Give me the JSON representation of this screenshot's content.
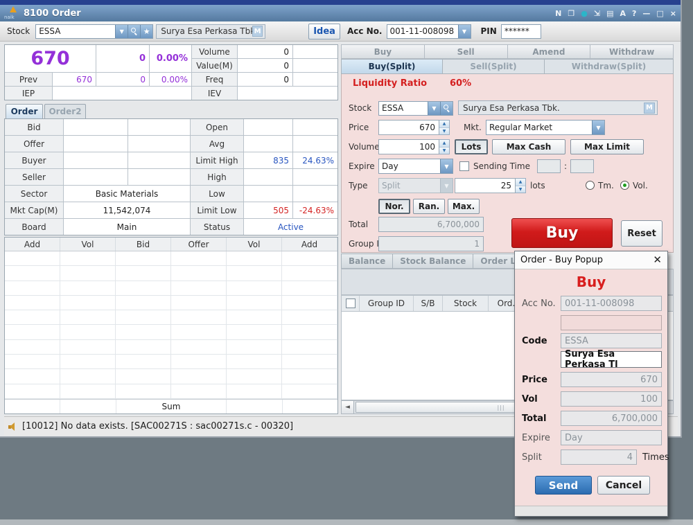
{
  "window": {
    "title": "8100 Order",
    "logo_text": "naik",
    "titlebar_icons": [
      {
        "name": "news-icon",
        "glyph": "N"
      },
      {
        "name": "window-mode-icon",
        "glyph": "❐"
      },
      {
        "name": "pin-icon",
        "glyph": "●",
        "color": "#2bb5c9"
      },
      {
        "name": "expand-icon",
        "glyph": "⇲"
      },
      {
        "name": "print-icon",
        "glyph": "▤"
      },
      {
        "name": "font-icon",
        "glyph": "A"
      },
      {
        "name": "help-icon",
        "glyph": "?"
      },
      {
        "name": "minimize-icon",
        "glyph": "—"
      },
      {
        "name": "maximize-icon",
        "glyph": "□"
      },
      {
        "name": "close-icon",
        "glyph": "×"
      }
    ]
  },
  "toolbar": {
    "stock_label": "Stock",
    "stock_code": "ESSA",
    "stock_name": "Surya Esa Perkasa Tbk.",
    "m_button": "M",
    "idea_button": "Idea",
    "acc_label": "Acc No.",
    "acc_value": "001-11-008098",
    "pin_label": "PIN",
    "pin_value": "******"
  },
  "quote": {
    "last_price": "670",
    "change": "0",
    "change_pct": "0.00%",
    "prev_label": "Prev",
    "prev_value": "670",
    "prev_change": "0",
    "prev_change_pct": "0.00%",
    "iep_label": "IEP",
    "volume_label": "Volume",
    "volume_value": "0",
    "value_label": "Value(M)",
    "value_value": "0",
    "freq_label": "Freq",
    "freq_value": "0",
    "iev_label": "IEV"
  },
  "left_tabs": {
    "order": "Order",
    "order2": "Order2"
  },
  "details": {
    "rows": [
      {
        "l": "Bid",
        "lv": "",
        "r": "Open",
        "rv1": "",
        "rv2": ""
      },
      {
        "l": "Offer",
        "lv": "",
        "r": "Avg",
        "rv1": "",
        "rv2": ""
      },
      {
        "l": "Buyer",
        "lv": "",
        "r": "Limit High",
        "rv1": "835",
        "rv2": "24.63%"
      },
      {
        "l": "Seller",
        "lv": "",
        "r": "High",
        "rv1": "",
        "rv2": ""
      },
      {
        "l": "Sector",
        "lv": "Basic Materials",
        "r": "Low",
        "rv1": "",
        "rv2": ""
      },
      {
        "l": "Mkt Cap(M)",
        "lv": "11,542,074",
        "r": "Limit Low",
        "rv1": "505",
        "rv2": "-24.63%"
      },
      {
        "l": "Board",
        "lv": "Main",
        "r": "Status",
        "rv1": "Active",
        "rv2": ""
      }
    ]
  },
  "orderbook": {
    "headers": [
      "Add",
      "Vol",
      "Bid",
      "Offer",
      "Vol",
      "Add"
    ],
    "empty_rows": 10,
    "sum_label": "Sum"
  },
  "order_panel": {
    "tabs_main": [
      "Buy",
      "Sell",
      "Amend",
      "Withdraw"
    ],
    "tabs_split": [
      "Buy(Split)",
      "Sell(Split)",
      "Withdraw(Split)"
    ],
    "liquidity_label": "Liquidity Ratio",
    "liquidity_value": "60%",
    "stock_label": "Stock",
    "stock_code": "ESSA",
    "stock_name": "Surya Esa Perkasa Tbk.",
    "m_button": "M",
    "price_label": "Price",
    "price_value": "670",
    "mkt_label": "Mkt.",
    "mkt_value": "Regular Market",
    "volume_label": "Volume",
    "volume_value": "100",
    "lots_button": "Lots",
    "max_cash_button": "Max Cash",
    "max_limit_button": "Max Limit",
    "expire_label": "Expire",
    "expire_value": "Day",
    "sending_time_label": "Sending Time",
    "time_separator": ":",
    "type_label": "Type",
    "type_value": "Split",
    "split_lots_value": "25",
    "lots_suffix": "lots",
    "radio_tm_label": "Tm.",
    "radio_vol_label": "Vol.",
    "nor_button": "Nor.",
    "ran_button": "Ran.",
    "max_button": "Max.",
    "total_label": "Total",
    "total_value": "6,700,000",
    "group_label": "Group ID",
    "group_value": "1",
    "buy_button": "Buy",
    "reset_button": "Reset"
  },
  "balance_section": {
    "tabs": [
      "Balance",
      "Stock Balance",
      "Order Li"
    ],
    "columns": [
      "Group ID",
      "S/B",
      "Stock",
      "Ord. Pri"
    ]
  },
  "status_bar": {
    "message": "[10012] No data exists. [SAC00271S : sac00271s.c - 00320]"
  },
  "popup": {
    "title": "Order - Buy Popup",
    "close_glyph": "✕",
    "heading": "Buy",
    "acc_label": "Acc No.",
    "acc_value": "001-11-008098",
    "code_label": "Code",
    "code_value": "ESSA",
    "name_value": "Surya Esa Perkasa Tl",
    "price_label": "Price",
    "price_value": "670",
    "vol_label": "Vol",
    "vol_value": "100",
    "total_label": "Total",
    "total_value": "6,700,000",
    "expire_label": "Expire",
    "expire_value": "Day",
    "split_label": "Split",
    "split_value": "4",
    "times_label": "Times",
    "send_button": "Send",
    "cancel_button": "Cancel"
  },
  "colors": {
    "price_purple": "#9430d8",
    "value_blue": "#2956c0",
    "value_red": "#d42525",
    "buy_red": "#d11b1b",
    "send_blue": "#2b6cb0",
    "panel_pink": "#f4dedd",
    "titlebar_blue": "#54799f"
  }
}
